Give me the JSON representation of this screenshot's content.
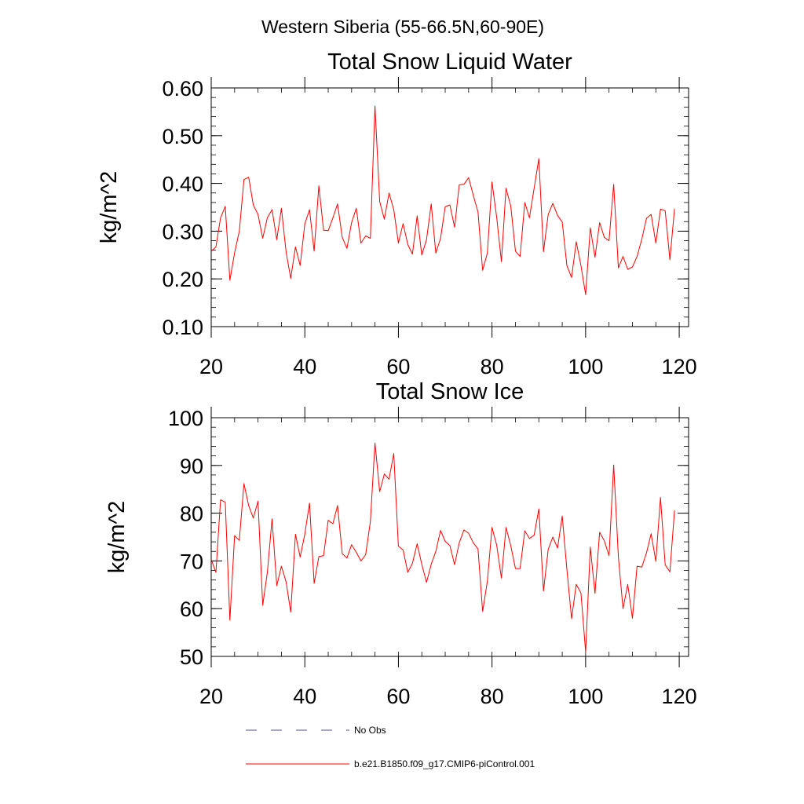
{
  "figure_title": "Western Siberia (55-66.5N,60-90E)",
  "legend": {
    "items": [
      {
        "label": "No Obs",
        "color": "#4a4f8c",
        "dash": true
      },
      {
        "label": "b.e21.B1850.f09_g17.CMIP6-piControl.001",
        "color": "#ff0000",
        "dash": false
      }
    ]
  },
  "chart_data": [
    {
      "type": "line",
      "title": "Total Snow Liquid Water",
      "xlabel": "",
      "ylabel": "kg/m^2",
      "xlim": [
        20,
        122
      ],
      "ylim": [
        0.1,
        0.6
      ],
      "x_ticks": [
        20,
        40,
        60,
        80,
        100,
        120
      ],
      "x_tick_labels": [
        "20",
        "40",
        "60",
        "80",
        "100",
        "120"
      ],
      "y_ticks": [
        0.1,
        0.2,
        0.3,
        0.4,
        0.5,
        0.6
      ],
      "y_tick_labels": [
        "0.10",
        "0.20",
        "0.30",
        "0.40",
        "0.50",
        "0.60"
      ],
      "y_minor_step": 0.02,
      "x_minor_step": 5,
      "grid": false,
      "series": [
        {
          "name": "b.e21.B1850.f09_g17.CMIP6-piControl.001",
          "color": "#ff0000",
          "x_start": 20,
          "x_step": 1,
          "values": [
            0.258,
            0.267,
            0.328,
            0.352,
            0.197,
            0.255,
            0.3,
            0.408,
            0.413,
            0.355,
            0.335,
            0.285,
            0.328,
            0.345,
            0.282,
            0.348,
            0.256,
            0.201,
            0.267,
            0.228,
            0.315,
            0.345,
            0.258,
            0.395,
            0.302,
            0.301,
            0.328,
            0.357,
            0.287,
            0.264,
            0.318,
            0.348,
            0.275,
            0.29,
            0.285,
            0.562,
            0.362,
            0.325,
            0.38,
            0.345,
            0.275,
            0.316,
            0.272,
            0.252,
            0.332,
            0.25,
            0.282,
            0.357,
            0.254,
            0.285,
            0.351,
            0.355,
            0.308,
            0.397,
            0.398,
            0.412,
            0.375,
            0.34,
            0.218,
            0.254,
            0.403,
            0.329,
            0.236,
            0.39,
            0.353,
            0.258,
            0.247,
            0.36,
            0.328,
            0.39,
            0.452,
            0.257,
            0.335,
            0.358,
            0.333,
            0.319,
            0.228,
            0.203,
            0.278,
            0.228,
            0.167,
            0.307,
            0.245,
            0.318,
            0.287,
            0.28,
            0.398,
            0.223,
            0.247,
            0.22,
            0.225,
            0.247,
            0.283,
            0.327,
            0.335,
            0.275,
            0.346,
            0.343,
            0.24,
            0.347
          ]
        }
      ]
    },
    {
      "type": "line",
      "title": "Total Snow Ice",
      "xlabel": "",
      "ylabel": "kg/m^2",
      "xlim": [
        20,
        122
      ],
      "ylim": [
        50,
        100
      ],
      "x_ticks": [
        20,
        40,
        60,
        80,
        100,
        120
      ],
      "x_tick_labels": [
        "20",
        "40",
        "60",
        "80",
        "100",
        "120"
      ],
      "y_ticks": [
        50,
        60,
        70,
        80,
        90,
        100
      ],
      "y_tick_labels": [
        "50",
        "60",
        "70",
        "80",
        "90",
        "100"
      ],
      "y_minor_step": 2,
      "x_minor_step": 5,
      "grid": false,
      "series": [
        {
          "name": "b.e21.B1850.f09_g17.CMIP6-piControl.001",
          "color": "#ff0000",
          "x_start": 20,
          "x_step": 1,
          "values": [
            70.3,
            67.6,
            82.8,
            82.3,
            57.6,
            75.3,
            74.3,
            86.2,
            81.6,
            79.0,
            82.5,
            60.7,
            67.6,
            78.8,
            64.8,
            68.9,
            65.6,
            59.3,
            75.6,
            70.8,
            75.6,
            82.1,
            65.3,
            70.9,
            71.1,
            78.5,
            77.8,
            81.6,
            71.5,
            70.6,
            73.4,
            71.8,
            70.0,
            71.3,
            78.2,
            94.7,
            84.5,
            88.2,
            87.1,
            92.5,
            73.1,
            72.3,
            67.6,
            69.5,
            73.6,
            69.3,
            65.5,
            69.3,
            72.0,
            76.4,
            74.1,
            73.2,
            69.2,
            73.8,
            76.5,
            75.8,
            73.8,
            72.5,
            59.4,
            65.7,
            77.0,
            73.3,
            66.4,
            77.0,
            73.2,
            68.4,
            68.4,
            76.3,
            74.7,
            75.4,
            80.9,
            63.7,
            72.4,
            75.0,
            72.7,
            79.4,
            68.2,
            57.9,
            65.1,
            63.3,
            50.9,
            72.9,
            63.2,
            76.0,
            74.2,
            71.1,
            90.1,
            70.8,
            60.0,
            65.1,
            58.0,
            68.9,
            68.7,
            71.7,
            75.7,
            69.9,
            83.3,
            69.2,
            67.7,
            80.6
          ]
        }
      ]
    }
  ]
}
